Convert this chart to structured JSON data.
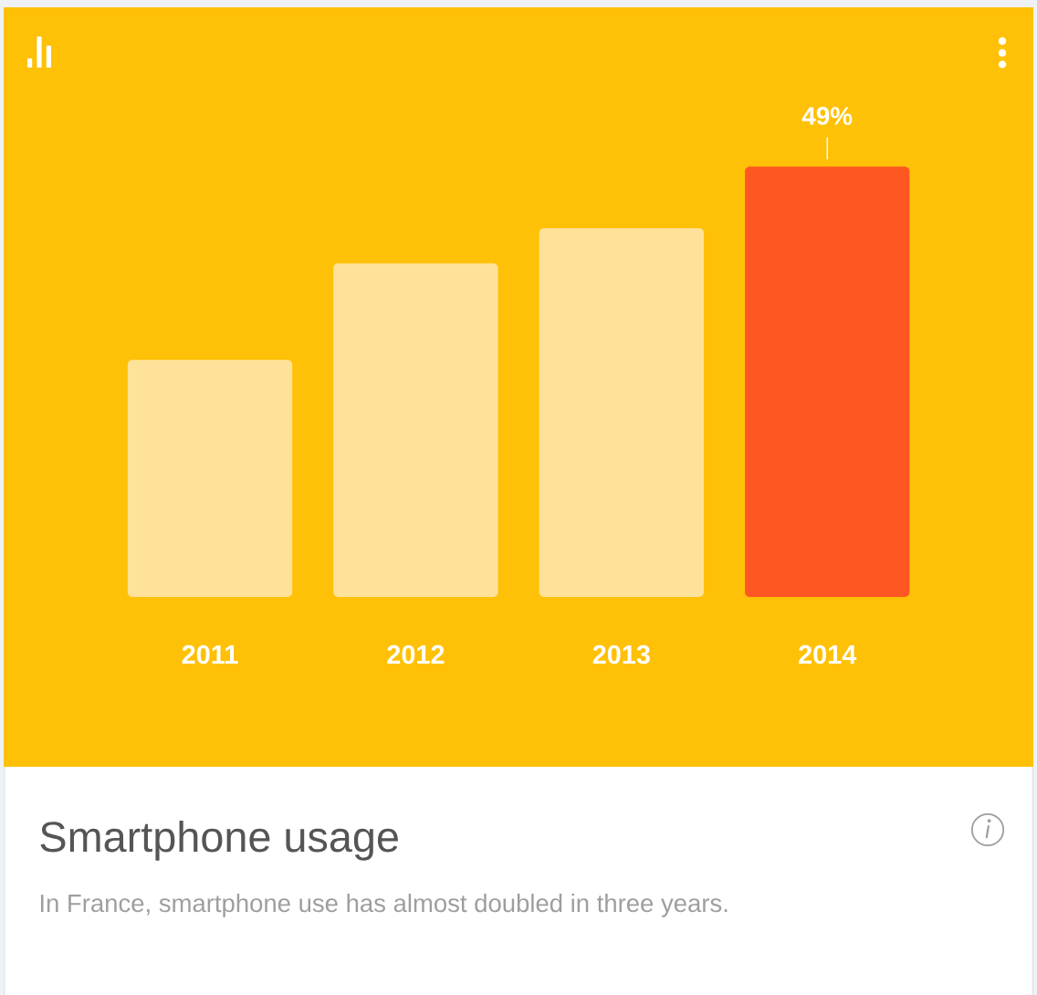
{
  "chart_data": {
    "type": "bar",
    "title": "Smartphone usage",
    "subtitle": "In France, smartphone use has almost doubled in three years.",
    "categories": [
      "2011",
      "2012",
      "2013",
      "2014"
    ],
    "values": [
      27,
      38,
      42,
      49
    ],
    "colors": [
      "#ffe29a",
      "#ffe29a",
      "#ffe29a",
      "#ff5722"
    ],
    "value_labels": [
      null,
      null,
      null,
      "49%"
    ],
    "tick_labels": "x"
  }
}
